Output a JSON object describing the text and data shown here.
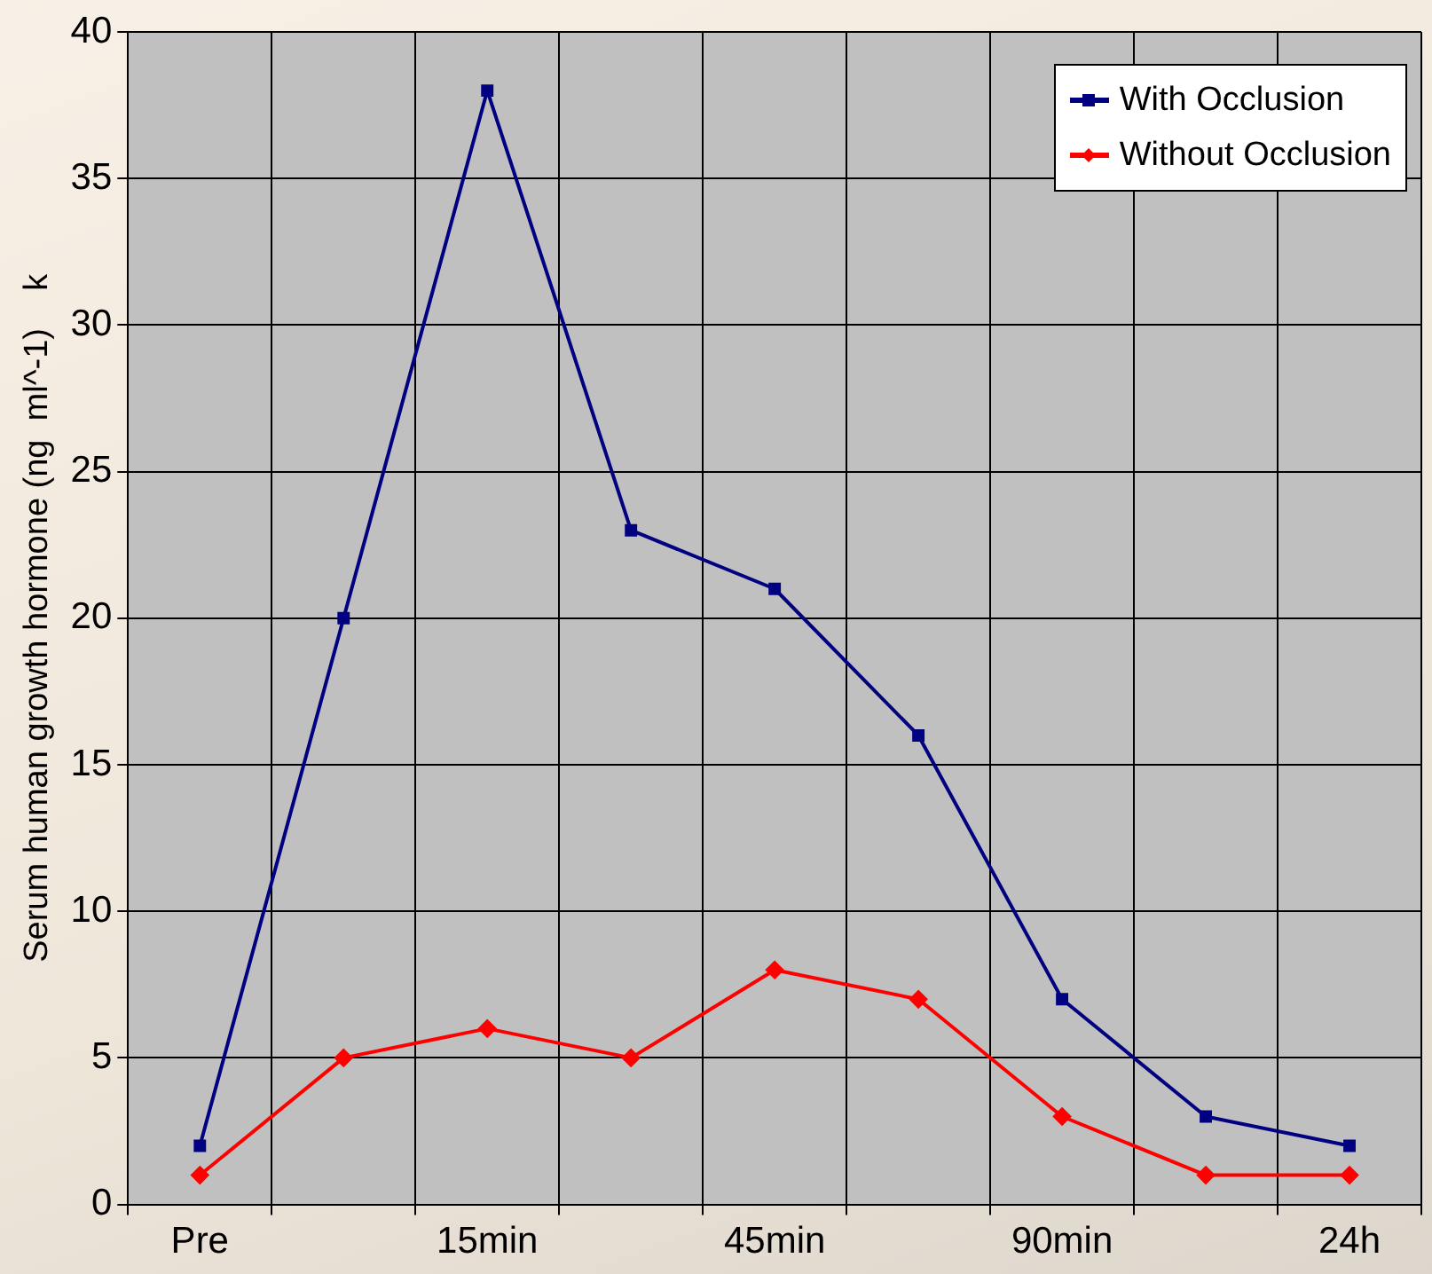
{
  "chart_data": {
    "type": "line",
    "ylabel": "Serum human growth hormone (ng  ml^-1)    k",
    "categories": [
      "Pre",
      null,
      "15min",
      null,
      "45min",
      null,
      "90min",
      null,
      "24h"
    ],
    "series": [
      {
        "name": "With Occlusion",
        "color": "#000080",
        "marker": "square",
        "values": [
          2,
          20,
          38,
          23,
          21,
          16,
          7,
          3,
          2
        ]
      },
      {
        "name": "Without Occlusion",
        "color": "#ff0000",
        "marker": "diamond",
        "values": [
          1,
          5,
          6,
          5,
          8,
          7,
          3,
          1,
          1
        ]
      }
    ],
    "ylim": [
      0,
      40
    ],
    "yticks": [
      0,
      5,
      10,
      15,
      20,
      25,
      30,
      35,
      40
    ],
    "grid": true,
    "legend": "top right",
    "line_style": "solid"
  }
}
